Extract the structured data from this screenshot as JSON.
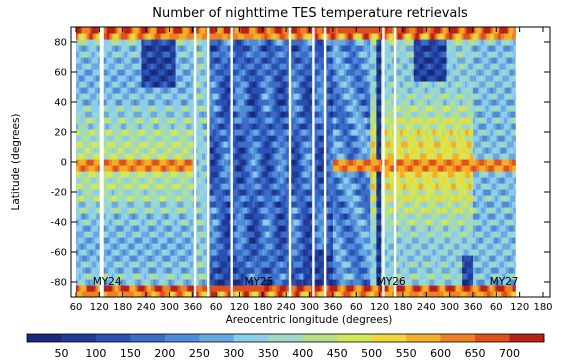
{
  "chart_data": {
    "type": "heatmap",
    "title": "Number of nighttime TES temperature retrievals",
    "xlabel": "Areocentric longitude (degrees)",
    "ylabel": "Latitude (degrees)",
    "x_tick_labels": [
      "60",
      "120",
      "180",
      "240",
      "300",
      "360",
      "60",
      "120",
      "180",
      "240",
      "300",
      "360",
      "60",
      "120",
      "180",
      "240",
      "300",
      "360",
      "60",
      "120",
      "180"
    ],
    "y_ticks": [
      80,
      60,
      40,
      20,
      0,
      -20,
      -40,
      -60,
      -80
    ],
    "ylim": [
      -90,
      90
    ],
    "mars_year_labels": [
      {
        "text": "MY24",
        "ls": 140
      },
      {
        "text": "MY25",
        "ls": 170
      },
      {
        "text": "MY26",
        "ls": 150
      },
      {
        "text": "MY27",
        "ls": 80
      }
    ],
    "colorbar": {
      "ticks": [
        50,
        100,
        150,
        200,
        250,
        300,
        350,
        400,
        450,
        500,
        550,
        600,
        650,
        700
      ],
      "range": [
        0,
        750
      ],
      "colors": [
        "#1a2a7a",
        "#213a96",
        "#2a52b4",
        "#3a6cc8",
        "#4f8ad8",
        "#6aa8e2",
        "#8ccdec",
        "#9ed8c8",
        "#b4e08a",
        "#d2e85a",
        "#ecd83a",
        "#f2b02a",
        "#ee8222",
        "#e0501e",
        "#b82018"
      ]
    },
    "data_gaps_ls": [
      {
        "cycle": 0,
        "ls": 124
      },
      {
        "cycle": 0,
        "ls": 128
      },
      {
        "cycle": 0,
        "ls": 366
      },
      {
        "cycle": 1,
        "ls": 40
      },
      {
        "cycle": 1,
        "ls": 100
      },
      {
        "cycle": 1,
        "ls": 250
      },
      {
        "cycle": 1,
        "ls": 310
      },
      {
        "cycle": 1,
        "ls": 340
      },
      {
        "cycle": 2,
        "ls": 130
      },
      {
        "cycle": 2,
        "ls": 160
      },
      {
        "cycle": 3,
        "ls": 120
      },
      {
        "cycle": 3,
        "ls": 140
      }
    ]
  }
}
